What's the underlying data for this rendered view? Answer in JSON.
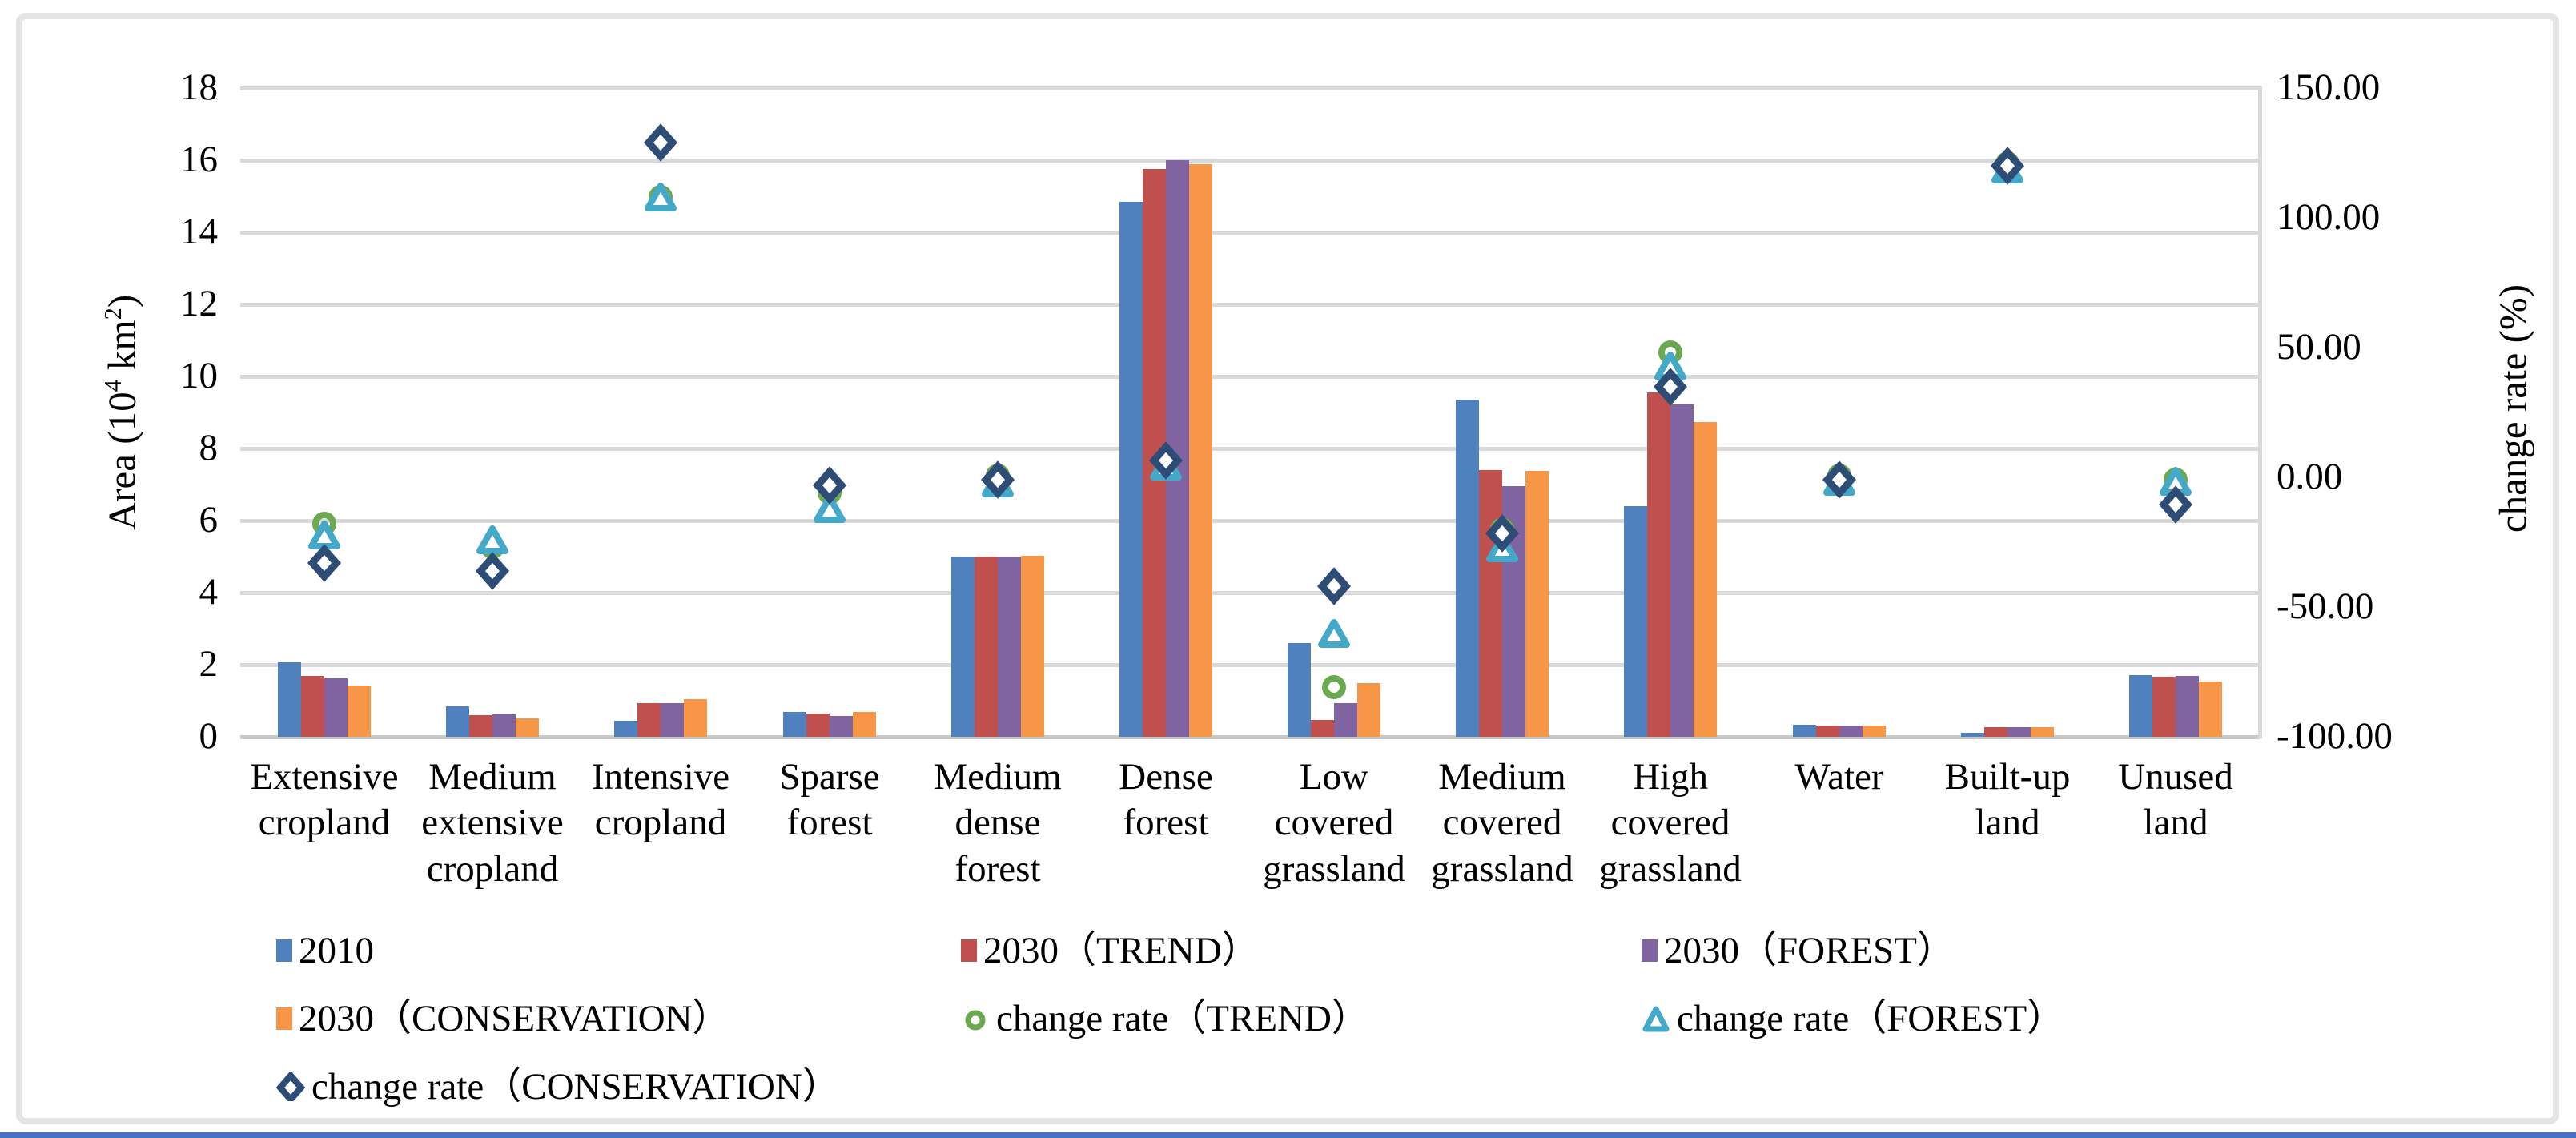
{
  "figure": {
    "background": "#ffffff",
    "frame_border_color": "#e4e4e4",
    "bottom_rule_color": "#4472c4",
    "grid_color": "#d9d9d9"
  },
  "chart_data": {
    "type": "bar+scatter combo (clustered columns with change-rate markers on secondary axis)",
    "categories": [
      "Extensive cropland",
      "Medium extensive cropland",
      "Intensive cropland",
      "Sparse forest",
      "Medium dense forest",
      "Dense forest",
      "Low covered grassland",
      "Medium covered grassland",
      "High covered grassland",
      "Water",
      "Built-up land",
      "Unused land"
    ],
    "bar_series": [
      {
        "name": "2010",
        "color": "#4e81bd",
        "values": [
          2.07,
          0.84,
          0.44,
          0.69,
          5.0,
          14.85,
          2.6,
          9.35,
          6.4,
          0.33,
          0.11,
          1.72
        ]
      },
      {
        "name": "2030（TREND）",
        "color": "#c0504d",
        "values": [
          1.7,
          0.6,
          0.93,
          0.64,
          5.0,
          15.75,
          0.46,
          7.39,
          9.55,
          0.32,
          0.27,
          1.67
        ]
      },
      {
        "name": "2030（FOREST）",
        "color": "#8064a2",
        "values": [
          1.63,
          0.63,
          0.93,
          0.58,
          5.0,
          16.0,
          0.93,
          6.96,
          9.22,
          0.32,
          0.27,
          1.69
        ]
      },
      {
        "name": "2030（CONSERVATION）",
        "color": "#f79646",
        "values": [
          1.42,
          0.52,
          1.04,
          0.68,
          5.02,
          15.9,
          1.48,
          7.38,
          8.74,
          0.32,
          0.26,
          1.53
        ]
      }
    ],
    "rate_series": [
      {
        "name": "change rate（TREND）",
        "marker": "circle",
        "color": "#6ba84f",
        "values": [
          -18,
          -27,
          108,
          -6,
          0.5,
          5,
          -81,
          -20,
          48,
          0.5,
          121,
          -1
        ]
      },
      {
        "name": "change rate（FOREST）",
        "marker": "triangle",
        "color": "#44a8c8",
        "values": [
          -23,
          -25,
          107,
          -13,
          -3,
          3.5,
          -61,
          -28,
          42,
          -2.5,
          118,
          -2.5
        ]
      },
      {
        "name": "change rate（CONSERVATION）",
        "marker": "diamond",
        "color": "#2e4d76",
        "values": [
          -33,
          -36,
          129,
          -3,
          -1,
          6.5,
          -42,
          -21.5,
          35,
          -1,
          120,
          -10.5
        ]
      }
    ],
    "left_axis": {
      "title_prefix": "Area (10",
      "title_sup1": "4",
      "title_mid": " km",
      "title_sup2": "2",
      "title_suffix": ")",
      "min": 0,
      "max": 18,
      "step": 2,
      "ticks": [
        "0",
        "2",
        "4",
        "6",
        "8",
        "10",
        "12",
        "14",
        "16",
        "18"
      ]
    },
    "right_axis": {
      "title": "change rate (%)",
      "min": -100,
      "max": 150,
      "step": 50,
      "ticks": [
        "150.00",
        "100.00",
        "50.00",
        "0.00",
        "-50.00",
        "-100.00"
      ]
    },
    "legend_labels": [
      "2010",
      "2030（TREND）",
      "2030（FOREST）",
      "2030（CONSERVATION）",
      "change rate（TREND）",
      "change rate（FOREST）",
      "change rate（CONSERVATION）"
    ],
    "grid": "horizontal gridlines on, left axis every 2 units",
    "legend_position": "bottom-left, 3 columns"
  }
}
